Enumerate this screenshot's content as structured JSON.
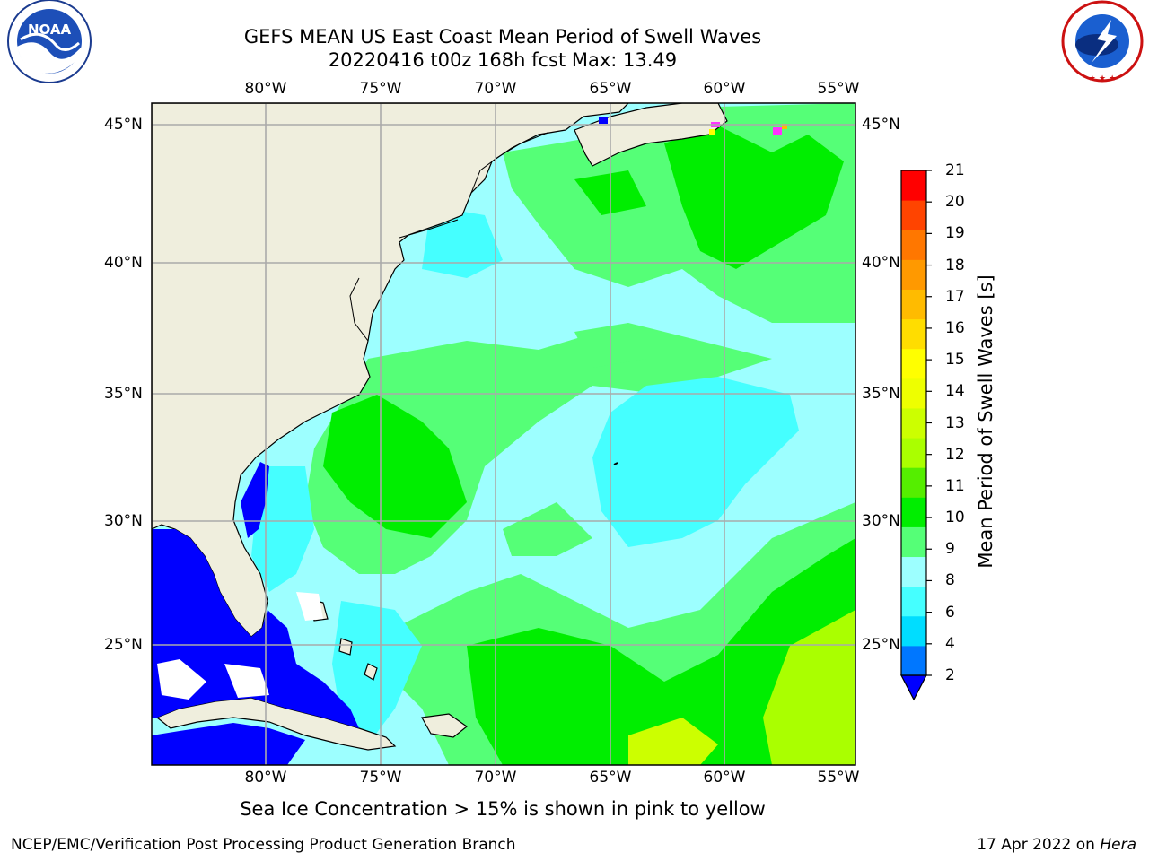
{
  "header": {
    "title_line1": "GEFS MEAN US East Coast Mean Period of Swell Waves",
    "title_line2": "20220416 t00z 168h fcst   Max: 13.49"
  },
  "logos": {
    "left": {
      "name": "NOAA",
      "ring_text": "NATIONAL OCEANIC AND ATMOSPHERIC ADMINISTRATION · U.S. DEPARTMENT OF COMMERCE"
    },
    "right": {
      "ring_text": "NATIONAL WEATHER SERVICE"
    }
  },
  "map": {
    "lon_labels": [
      "80°W",
      "75°W",
      "70°W",
      "65°W",
      "60°W",
      "55°W"
    ],
    "lat_labels": [
      "45°N",
      "40°N",
      "35°N",
      "30°N",
      "25°N"
    ],
    "colors": {
      "land": "#efeedd",
      "blue": "#0000ff",
      "cyan_light": "#9dffff",
      "cyan": "#45ffff",
      "green_light": "#55ff77",
      "green": "#00ee00",
      "yellow_green": "#aaff00",
      "grid": "#aaaaaa"
    }
  },
  "colorbar": {
    "title": "Mean Period of Swell Waves [s]",
    "ticks": [
      "21",
      "20",
      "19",
      "18",
      "17",
      "16",
      "15",
      "14",
      "13",
      "12",
      "11",
      "10",
      "9",
      "8",
      "6",
      "4",
      "2"
    ],
    "colors": [
      "#0077ff",
      "#00ddff",
      "#45ffff",
      "#9dffff",
      "#55ff77",
      "#00ee00",
      "#55ee00",
      "#aaff00",
      "#ccff00",
      "#eeff00",
      "#ffff00",
      "#ffdd00",
      "#ffbb00",
      "#ff9900",
      "#ff7700",
      "#ff4400",
      "#ff0000"
    ],
    "underflow_color": "#0000ff"
  },
  "ice_note": "Sea Ice Concentration > 15% is shown in pink to yellow",
  "footer": {
    "left": "NCEP/EMC/Verification Post Processing Product Generation Branch",
    "right_date": "17 Apr 2022 on",
    "right_host": "Hera"
  }
}
